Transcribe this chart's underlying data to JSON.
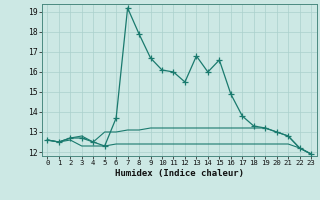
{
  "title": "",
  "xlabel": "Humidex (Indice chaleur)",
  "ylabel": "",
  "xlim": [
    -0.5,
    23.5
  ],
  "ylim": [
    11.8,
    19.4
  ],
  "yticks": [
    12,
    13,
    14,
    15,
    16,
    17,
    18,
    19
  ],
  "xticks": [
    0,
    1,
    2,
    3,
    4,
    5,
    6,
    7,
    8,
    9,
    10,
    11,
    12,
    13,
    14,
    15,
    16,
    17,
    18,
    19,
    20,
    21,
    22,
    23
  ],
  "bg_color": "#cce8e4",
  "grid_color": "#aad0cc",
  "line_color": "#1a7a6e",
  "series1": [
    12.6,
    12.5,
    12.7,
    12.7,
    12.5,
    12.3,
    13.7,
    19.2,
    17.9,
    16.7,
    16.1,
    16.0,
    15.5,
    16.8,
    16.0,
    16.6,
    14.9,
    13.8,
    13.3,
    13.2,
    13.0,
    12.8,
    12.2,
    11.9
  ],
  "series2": [
    12.6,
    12.5,
    12.7,
    12.8,
    12.5,
    13.0,
    13.0,
    13.1,
    13.1,
    13.2,
    13.2,
    13.2,
    13.2,
    13.2,
    13.2,
    13.2,
    13.2,
    13.2,
    13.2,
    13.2,
    13.0,
    12.8,
    12.2,
    11.9
  ],
  "series3": [
    12.6,
    12.5,
    12.6,
    12.3,
    12.3,
    12.3,
    12.4,
    12.4,
    12.4,
    12.4,
    12.4,
    12.4,
    12.4,
    12.4,
    12.4,
    12.4,
    12.4,
    12.4,
    12.4,
    12.4,
    12.4,
    12.4,
    12.2,
    11.9
  ]
}
